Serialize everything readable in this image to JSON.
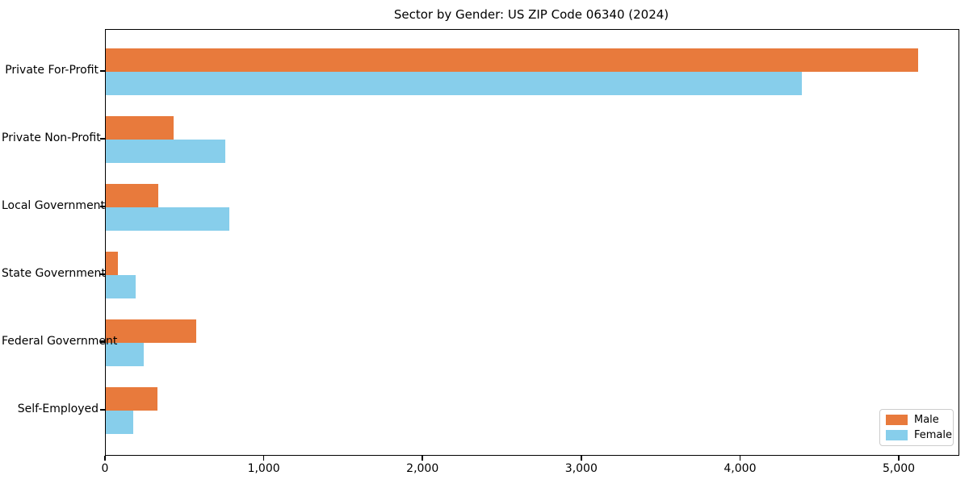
{
  "figure": {
    "title": "Sector by Gender: US ZIP Code 06340 (2024)"
  },
  "chart_data": {
    "type": "bar",
    "orientation": "horizontal",
    "title": "Sector by Gender: US ZIP Code 06340 (2024)",
    "categories": [
      "Private For-Profit",
      "Private Non-Profit",
      "Local Government",
      "State Government",
      "Federal Government",
      "Self-Employed"
    ],
    "series": [
      {
        "name": "Male",
        "color": "#E87A3C",
        "values": [
          5115,
          425,
          330,
          75,
          570,
          325
        ]
      },
      {
        "name": "Female",
        "color": "#87CEEB",
        "values": [
          4385,
          755,
          780,
          190,
          240,
          175
        ]
      }
    ],
    "xlabel": "",
    "ylabel": "",
    "xlim": [
      0,
      5371
    ],
    "xticks": [
      0,
      1000,
      2000,
      3000,
      4000,
      5000
    ],
    "xtick_labels": [
      "0",
      "1,000",
      "2,000",
      "3,000",
      "4,000",
      "5,000"
    ],
    "legend": {
      "position": "lower right",
      "entries": [
        "Male",
        "Female"
      ]
    },
    "grid": false,
    "background_color": "#FFFFFF",
    "spine_color": "#000000"
  }
}
